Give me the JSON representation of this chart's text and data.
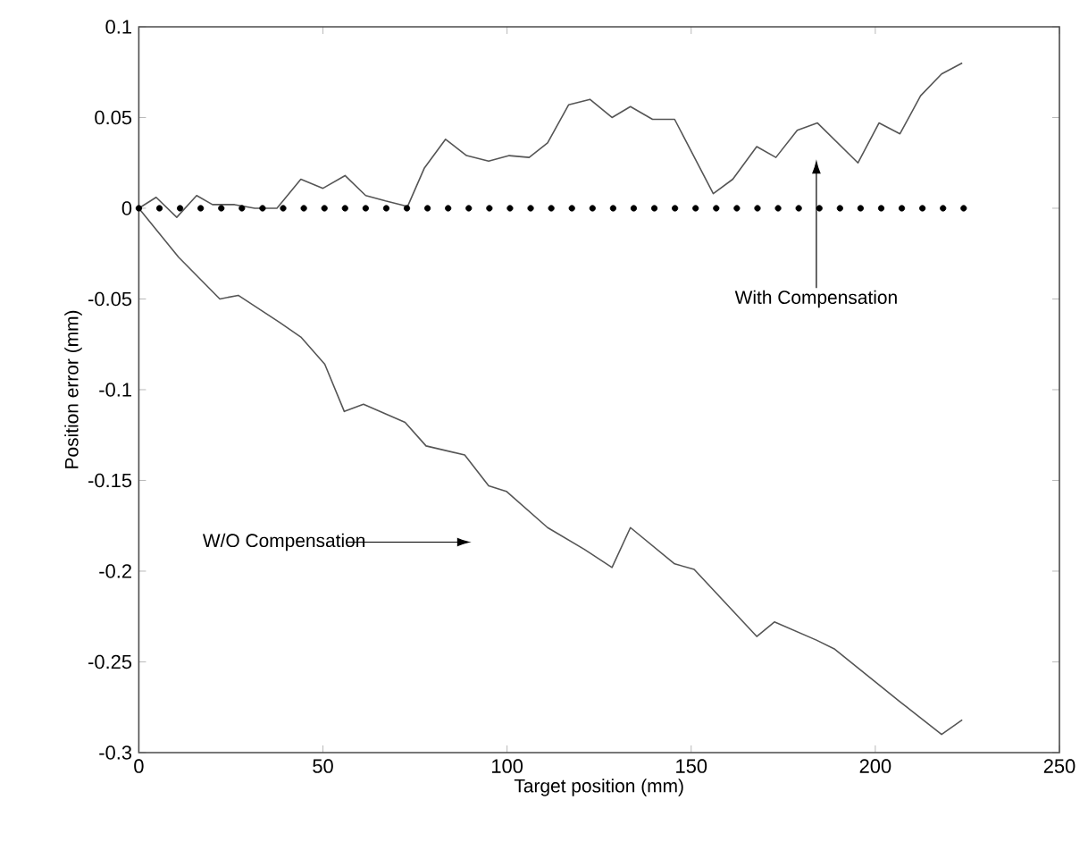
{
  "chart_data": {
    "type": "line",
    "xlabel": "Target position (mm)",
    "ylabel": "Position error (mm)",
    "xlim": [
      0,
      250
    ],
    "ylim": [
      -0.3,
      0.1
    ],
    "xticks": [
      0,
      50,
      100,
      150,
      200,
      250
    ],
    "yticks": [
      -0.3,
      -0.25,
      -0.2,
      -0.15,
      -0.1,
      -0.05,
      0,
      0.05,
      0.1
    ],
    "grid": false,
    "series": [
      {
        "color": "#555555",
        "x": [
          0,
          4.7,
          10.3,
          15.7,
          20,
          26,
          31.5,
          37.5,
          44,
          50,
          56,
          61.6,
          67,
          73,
          77.5,
          83.3,
          89,
          95,
          100.6,
          106,
          111,
          116.7,
          122.5,
          128.5,
          133.5,
          139.5,
          145.5,
          156,
          161.3,
          167.8,
          173,
          178.8,
          184.3,
          195.3,
          201,
          206.7,
          212.3,
          218,
          223.6
        ],
        "values": [
          0,
          0.006,
          -0.005,
          0.007,
          0.002,
          0.002,
          0,
          0,
          0.016,
          0.011,
          0.018,
          0.007,
          0.004,
          0.001,
          0.022,
          0.038,
          0.029,
          0.026,
          0.029,
          0.028,
          0.036,
          0.057,
          0.06,
          0.05,
          0.056,
          0.049,
          0.049,
          0.008,
          0.016,
          0.034,
          0.028,
          0.043,
          0.047,
          0.025,
          0.047,
          0.041,
          0.062,
          0.074,
          0.08
        ]
      },
      {
        "color": "#555555",
        "x": [
          0,
          10.8,
          22,
          27,
          38.3,
          44,
          50.5,
          55.8,
          61,
          72.3,
          78,
          88.5,
          95,
          99.8,
          111,
          121,
          128.5,
          133.5,
          145.5,
          150.8,
          167.8,
          172.6,
          184,
          189,
          200,
          206.7,
          218,
          223.6
        ],
        "values": [
          0,
          -0.027,
          -0.05,
          -0.048,
          -0.063,
          -0.071,
          -0.086,
          -0.112,
          -0.108,
          -0.118,
          -0.131,
          -0.136,
          -0.153,
          -0.156,
          -0.176,
          -0.188,
          -0.198,
          -0.176,
          -0.196,
          -0.199,
          -0.236,
          -0.228,
          -0.238,
          -0.243,
          -0.261,
          -0.272,
          -0.29,
          -0.282
        ]
      },
      {
        "type": "scatter",
        "marker": "circle",
        "color": "#000000",
        "x": [
          0,
          5.6,
          11.2,
          16.8,
          22.4,
          28,
          33.6,
          39.2,
          44.8,
          50.4,
          56,
          61.6,
          67.2,
          72.8,
          78.4,
          84,
          89.6,
          95.2,
          100.8,
          106.4,
          112,
          117.6,
          123.2,
          128.8,
          134.4,
          140,
          145.6,
          151.2,
          156.8,
          162.4,
          168,
          173.6,
          179.2,
          184.8,
          190.4,
          196,
          201.6,
          207.2,
          212.8,
          218.4,
          224
        ],
        "values": [
          0,
          0,
          0,
          0,
          0,
          0,
          0,
          0,
          0,
          0,
          0,
          0,
          0,
          0,
          0,
          0,
          0,
          0,
          0,
          0,
          0,
          0,
          0,
          0,
          0,
          0,
          0,
          0,
          0,
          0,
          0,
          0,
          0,
          0,
          0,
          0,
          0,
          0,
          0,
          0,
          0
        ]
      }
    ],
    "annotations": [
      "With Compensation",
      "W/O Compensation"
    ]
  }
}
